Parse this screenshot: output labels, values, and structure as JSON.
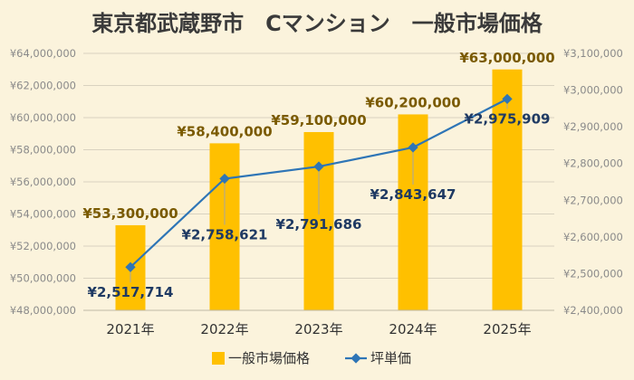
{
  "chart_data": {
    "type": "bar+line",
    "title": "東京都武蔵野市　Cマンション　一般市場価格",
    "categories": [
      "2021年",
      "2022年",
      "2023年",
      "2024年",
      "2025年"
    ],
    "series": [
      {
        "name": "一般市場価格",
        "type": "bar",
        "axis": "left",
        "values": [
          53300000,
          58400000,
          59100000,
          60200000,
          63000000
        ],
        "labels": [
          "¥53,300,000",
          "¥58,400,000",
          "¥59,100,000",
          "¥60,200,000",
          "¥63,000,000"
        ],
        "color": "#ffc000"
      },
      {
        "name": "坪単価",
        "type": "line",
        "axis": "right",
        "values": [
          2517714,
          2758621,
          2791686,
          2843647,
          2975909
        ],
        "labels": [
          "¥2,517,714",
          "¥2,758,621",
          "¥2,791,686",
          "¥2,843,647",
          "¥2,975,909"
        ],
        "color": "#2e75b6"
      }
    ],
    "y_left": {
      "range": [
        48000000,
        64000000
      ],
      "ticks": [
        "¥48,000,000",
        "¥50,000,000",
        "¥52,000,000",
        "¥54,000,000",
        "¥56,000,000",
        "¥58,000,000",
        "¥60,000,000",
        "¥62,000,000",
        "¥64,000,000"
      ]
    },
    "y_right": {
      "range": [
        2400000,
        3100000
      ],
      "ticks": [
        "¥2,400,000",
        "¥2,500,000",
        "¥2,600,000",
        "¥2,700,000",
        "¥2,800,000",
        "¥2,900,000",
        "¥3,000,000",
        "¥3,100,000"
      ]
    },
    "grid": true,
    "legend_position": "bottom"
  }
}
